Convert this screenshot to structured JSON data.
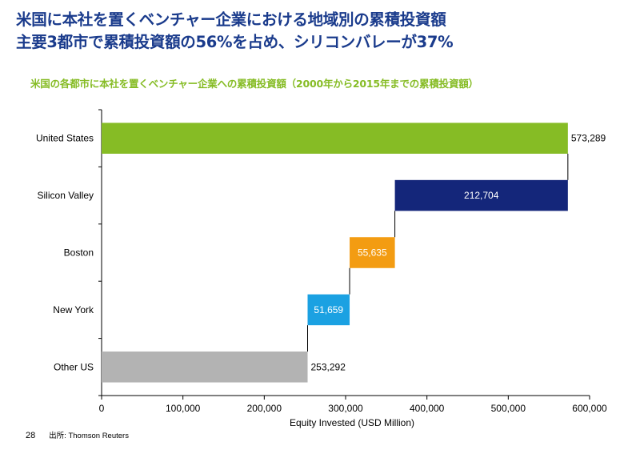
{
  "slide": {
    "headline_line1": "米国に本社を置くベンチャー企業における地域別の累積投資額",
    "headline_line2": "主要3都市で累積投資額の56%を占め、シリコンバレーが37%",
    "page_number": "28",
    "source": "出所: Thomson Reuters"
  },
  "chart_data": {
    "type": "bar",
    "subtype": "waterfall-horizontal",
    "title": "米国の各都市に本社を置くベンチャー企業への累積投資額（2000年から2015年までの累積投資額）",
    "xlabel": "Equity Invested (USD Million)",
    "ylabel": "",
    "xlim": [
      0,
      600000
    ],
    "xticks": [
      0,
      100000,
      200000,
      300000,
      400000,
      500000,
      600000
    ],
    "xtick_labels": [
      "0",
      "100,000",
      "200,000",
      "300,000",
      "400,000",
      "500,000",
      "600,000"
    ],
    "grid": false,
    "categories": [
      "United States",
      "Silicon Valley",
      "Boston",
      "New York",
      "Other US"
    ],
    "values": [
      573289,
      212704,
      55635,
      51659,
      253292
    ],
    "value_labels": [
      "573,289",
      "212,704",
      "55,635",
      "51,659",
      "253,292"
    ],
    "colors": [
      "#86bc25",
      "#14267a",
      "#f39c12",
      "#1ba1e2",
      "#b3b3b3"
    ],
    "label_position": [
      "outside",
      "inside",
      "inside",
      "inside",
      "outside"
    ]
  }
}
